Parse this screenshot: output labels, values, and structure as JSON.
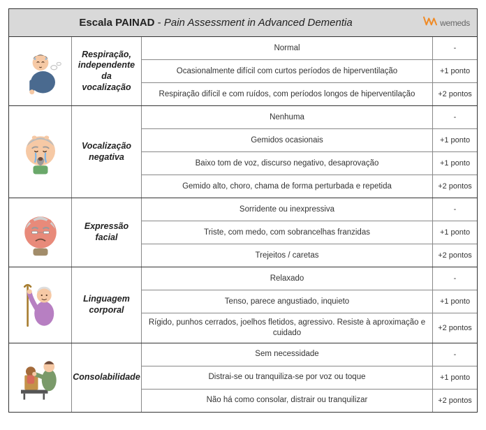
{
  "header": {
    "title_bold": "Escala PAINAD",
    "title_sep": " - ",
    "title_italic": "Pain Assessment in Advanced Dementia",
    "logo_text": "wemeds",
    "logo_color": "#f08a24",
    "bg": "#d9d9d9"
  },
  "border_color": "#333333",
  "inner_border": "#888888",
  "sections": [
    {
      "category": "Respiração, independente da vocalização",
      "icon_kind": "breathing",
      "rows": [
        {
          "desc": "Normal",
          "score": "-"
        },
        {
          "desc": "Ocasionalmente difícil com curtos períodos de hiperventilação",
          "score": "+1 ponto"
        },
        {
          "desc": "Respiração difícil e com ruídos, com períodos longos de hiperventilação",
          "score": "+2 pontos"
        }
      ]
    },
    {
      "category": "Vocalização negativa",
      "icon_kind": "crying",
      "rows": [
        {
          "desc": "Nenhuma",
          "score": "-"
        },
        {
          "desc": "Gemidos ocasionais",
          "score": "+1 ponto"
        },
        {
          "desc": "Baixo tom de voz, discurso negativo, desaprovação",
          "score": "+1 ponto"
        },
        {
          "desc": "Gemido alto, choro, chama de forma perturbada e repetida",
          "score": "+2 pontos"
        }
      ]
    },
    {
      "category": "Expressão facial",
      "icon_kind": "face",
      "rows": [
        {
          "desc": "Sorridente ou inexpressiva",
          "score": "-"
        },
        {
          "desc": "Triste, com medo, com sobrancelhas franzidas",
          "score": "+1 ponto"
        },
        {
          "desc": "Trejeitos / caretas",
          "score": "+2 pontos"
        }
      ]
    },
    {
      "category": "Linguagem corporal",
      "icon_kind": "body",
      "rows": [
        {
          "desc": "Relaxado",
          "score": "-"
        },
        {
          "desc": "Tenso, parece angustiado, inquieto",
          "score": "+1 ponto"
        },
        {
          "desc": "Rígido, punhos cerrados, joelhos fletidos, agressivo. Resiste à aproximação e cuidado",
          "score": "+2 pontos"
        }
      ]
    },
    {
      "category": "Consolabilidade",
      "icon_kind": "console",
      "rows": [
        {
          "desc": "Sem necessidade",
          "score": "-"
        },
        {
          "desc": "Distrai-se ou tranquiliza-se por voz ou toque",
          "score": "+1 ponto"
        },
        {
          "desc": "Não há como consolar, distrair ou tranquilizar",
          "score": "+2 pontos"
        }
      ]
    }
  ]
}
